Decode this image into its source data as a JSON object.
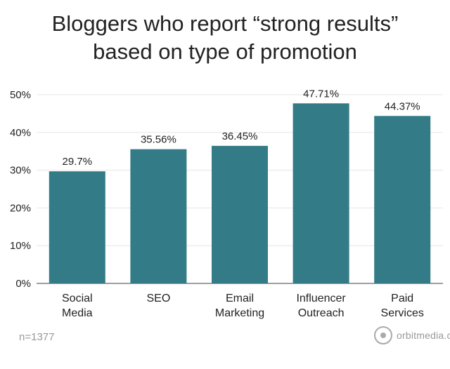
{
  "header": {
    "title_line1": "Bloggers who report “strong results”",
    "title_line2": "based on type of promotion"
  },
  "footnote": "n=1377",
  "brand": {
    "text": "orbitmedia.com",
    "icon": "orbit-logo-icon"
  },
  "colors": {
    "bar": "#337b86",
    "axis": "#666666",
    "grid": "#e6e6e6",
    "text": "#222222"
  },
  "chart_data": {
    "type": "bar",
    "categories": [
      [
        "Social",
        "Media"
      ],
      [
        "SEO"
      ],
      [
        "Email",
        "Marketing"
      ],
      [
        "Influencer",
        "Outreach"
      ],
      [
        "Paid",
        "Services"
      ]
    ],
    "values": [
      29.7,
      35.56,
      36.45,
      47.71,
      44.37
    ],
    "data_labels": [
      "29.7%",
      "35.56%",
      "36.45%",
      "47.71%",
      "44.37%"
    ],
    "yticks": [
      "0%",
      "10%",
      "20%",
      "30%",
      "40%",
      "50%"
    ],
    "ylim": [
      0,
      50
    ],
    "grid": true
  }
}
